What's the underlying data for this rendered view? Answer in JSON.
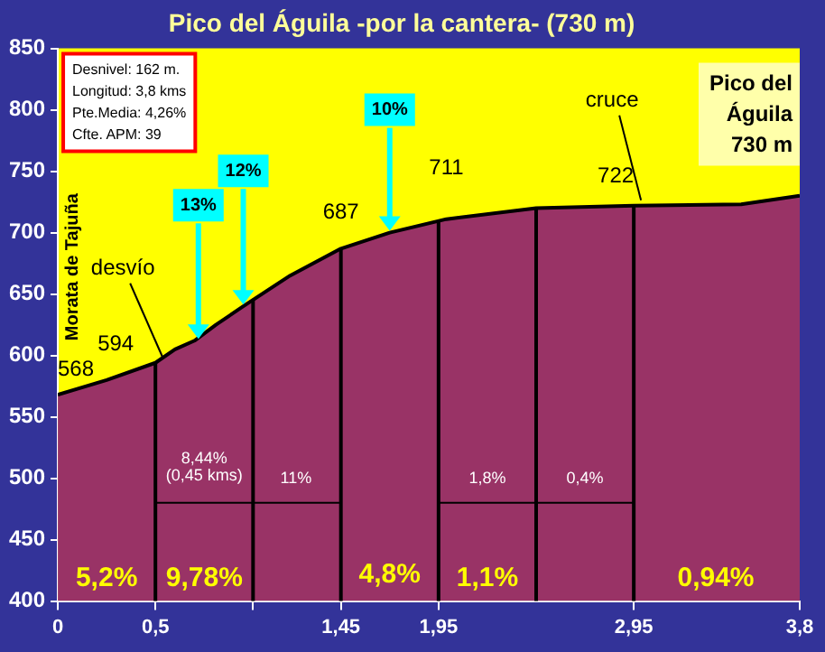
{
  "chart_data": {
    "type": "area",
    "title": "Pico del Águila -por la cantera- (730 m)",
    "x": [
      0,
      0.25,
      0.5,
      0.6,
      0.7,
      0.81,
      0.95,
      1.19,
      1.45,
      1.7,
      1.99,
      2.45,
      2.95,
      3.5,
      3.8
    ],
    "series": [
      {
        "color": "#993366",
        "values": [
          568,
          580,
          594,
          605,
          612,
          625,
          640,
          665,
          687,
          700,
          711,
          720,
          722,
          723,
          730
        ]
      }
    ],
    "xlim": [
      0,
      3.8
    ],
    "xticks": [
      0,
      {
        "value": 0.5,
        "label": "0,5"
      },
      {
        "value": 1,
        "label": null
      },
      {
        "value": 1.45,
        "label": "1,45"
      },
      {
        "value": 1.95,
        "label": "1,95"
      },
      {
        "value": 2.95,
        "label": "2,95"
      },
      {
        "value": 3.8,
        "label": "3,8"
      }
    ],
    "ylim": [
      400,
      850
    ],
    "yticks": [
      400,
      450,
      500,
      550,
      600,
      650,
      700,
      750,
      800,
      850
    ],
    "grid": false,
    "legend": false,
    "marker": "none",
    "line_style": "solid",
    "ref_lines": [
      {
        "axis": "x",
        "value": 0.5,
        "color": "#000000"
      },
      {
        "axis": "x",
        "value": 1,
        "color": "#000000"
      },
      {
        "axis": "x",
        "value": 1.45,
        "color": "#000000"
      },
      {
        "axis": "x",
        "value": 1.95,
        "color": "#000000"
      },
      {
        "axis": "x",
        "value": 2.45,
        "color": "#000000"
      },
      {
        "axis": "x",
        "value": 2.95,
        "color": "#000000"
      }
    ],
    "annotations": [
      {
        "text": "568",
        "x": 0,
        "y": 568
      },
      {
        "text": "594",
        "x": 0.5,
        "y": 594
      },
      {
        "text": "687",
        "x": 1.45,
        "y": 687
      },
      {
        "text": "711",
        "x": 1.99,
        "y": 711
      },
      {
        "text": "722",
        "x": 2.95,
        "y": 722
      },
      {
        "text": "desvío",
        "x": 0.5,
        "y": 594
      },
      {
        "text": "cruce",
        "x": 2.95,
        "y": 722
      },
      {
        "text": "13%",
        "x": 0.72,
        "y": 612
      },
      {
        "text": "12%",
        "x": 0.95,
        "y": 640
      },
      {
        "text": "10%",
        "x": 1.7,
        "y": 700
      },
      "5,2%",
      "9,78%",
      "4,8%",
      "1,1%",
      "0,94%",
      "8,44%",
      "(0,45 kms)",
      "11%",
      "1,8%",
      "0,4%",
      "Desnivel: 162 m.",
      "Longitud: 3,8 kms",
      "Pte.Media: 4,26%",
      "Cfte. APM: 39",
      "Pico del Águila 730 m",
      "Morata de Tajuña"
    ]
  }
}
